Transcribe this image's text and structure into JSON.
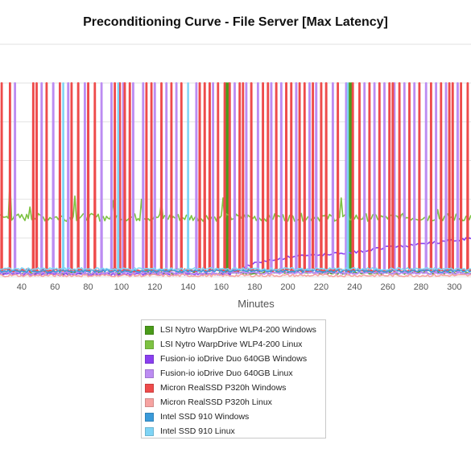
{
  "chart_data": {
    "type": "line",
    "title": "Preconditioning Curve - File Server [Max Latency]",
    "xlabel": "Minutes",
    "ylabel": "",
    "xlim": [
      27,
      310
    ],
    "ylim": [
      0,
      360
    ],
    "x_ticks": [
      40,
      60,
      80,
      100,
      120,
      140,
      160,
      180,
      200,
      220,
      240,
      260,
      280,
      300
    ],
    "grid": true,
    "legend_position": "bottom",
    "series": [
      {
        "name": "LSI Nytro WarpDrive WLP4-200 Windows",
        "color": "#4a9b1a",
        "spikes": [
          163,
          164,
          237,
          238
        ],
        "baseline": 6
      },
      {
        "name": "LSI Nytro WarpDrive WLP4-200 Linux",
        "color": "#7dc242",
        "spikes": [],
        "baseline": 92,
        "noise": 6,
        "peaks": [
          [
            33,
            150
          ],
          [
            45,
            108
          ],
          [
            72,
            125
          ],
          [
            95,
            118
          ],
          [
            112,
            120
          ],
          [
            124,
            115
          ],
          [
            161,
            122
          ],
          [
            232,
            122
          ],
          [
            290,
            104
          ]
        ]
      },
      {
        "name": "Fusion-io ioDrive Duo 640GB Windows",
        "color": "#8a3ff0",
        "spikes": [],
        "baseline": 4,
        "ramp": [
          [
            165,
            4
          ],
          [
            180,
            22
          ],
          [
            200,
            30
          ],
          [
            240,
            38
          ],
          [
            260,
            46
          ],
          [
            280,
            50
          ],
          [
            310,
            60
          ]
        ]
      },
      {
        "name": "Fusion-io ioDrive Duo 640GB Linux",
        "color": "#bc8cf2",
        "spikes": [
          36,
          52,
          59,
          68,
          78,
          88,
          94,
          101,
          107,
          113,
          120,
          127,
          133,
          145,
          155,
          168,
          175,
          182,
          190,
          196,
          205,
          213,
          217,
          227,
          235,
          246,
          252,
          258,
          264,
          270,
          276,
          283,
          289,
          295,
          302
        ],
        "baseline": 6
      },
      {
        "name": "Micron RealSSD P320h Windows",
        "color": "#ee4b4b",
        "spikes": [
          28,
          33,
          47,
          49,
          55,
          63,
          70,
          74,
          80,
          84,
          96,
          99,
          102,
          105,
          115,
          118,
          124,
          130,
          136,
          147,
          150,
          153,
          158,
          162,
          165,
          171,
          173,
          178,
          185,
          188,
          193,
          199,
          202,
          207,
          210,
          215,
          220,
          223,
          230,
          239,
          243,
          249,
          255,
          261,
          263,
          267,
          273,
          279,
          286,
          292,
          297,
          299,
          304,
          308
        ],
        "baseline": 10
      },
      {
        "name": "Micron RealSSD P320h Linux",
        "color": "#f6a3a1",
        "spikes": [],
        "baseline": 2
      },
      {
        "name": "Intel SSD 910 Windows",
        "color": "#3a9ad9",
        "spikes": [],
        "baseline": 9
      },
      {
        "name": "Intel SSD 910 Linux",
        "color": "#7fd4f5",
        "spikes": [
          65,
          98,
          140,
          236
        ],
        "baseline": 12
      }
    ]
  }
}
